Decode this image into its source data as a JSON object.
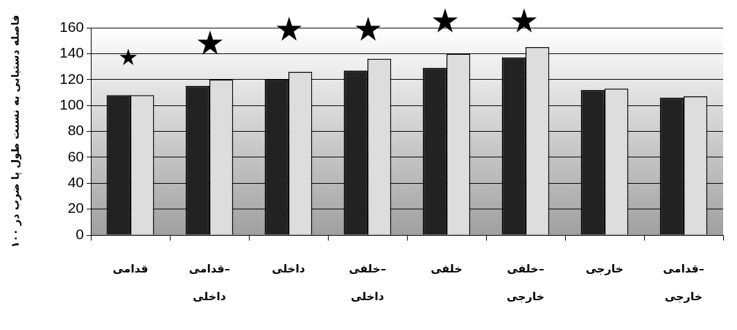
{
  "chart_data": {
    "type": "bar",
    "ylabel": "فاصله دستیابی به نسبت طول پا ضرب در ۱۰۰",
    "categories": [
      "قدامی",
      "قدامی–داخلی",
      "داخلی",
      "خلفی–داخلی",
      "خلفی",
      "خلفی–خارجی",
      "خارجی",
      "قدامی–خارجی"
    ],
    "series": [
      {
        "color": "#222222",
        "values": [
          108,
          115,
          120,
          127,
          129,
          137,
          112,
          106
        ]
      },
      {
        "color": "#dddddd",
        "values": [
          108,
          120,
          126,
          136,
          140,
          145,
          113,
          107
        ]
      }
    ],
    "ylim": [
      0,
      160
    ],
    "yticks": [
      0,
      20,
      40,
      60,
      80,
      100,
      120,
      140,
      160
    ],
    "grid": "y",
    "legend": false
  }
}
